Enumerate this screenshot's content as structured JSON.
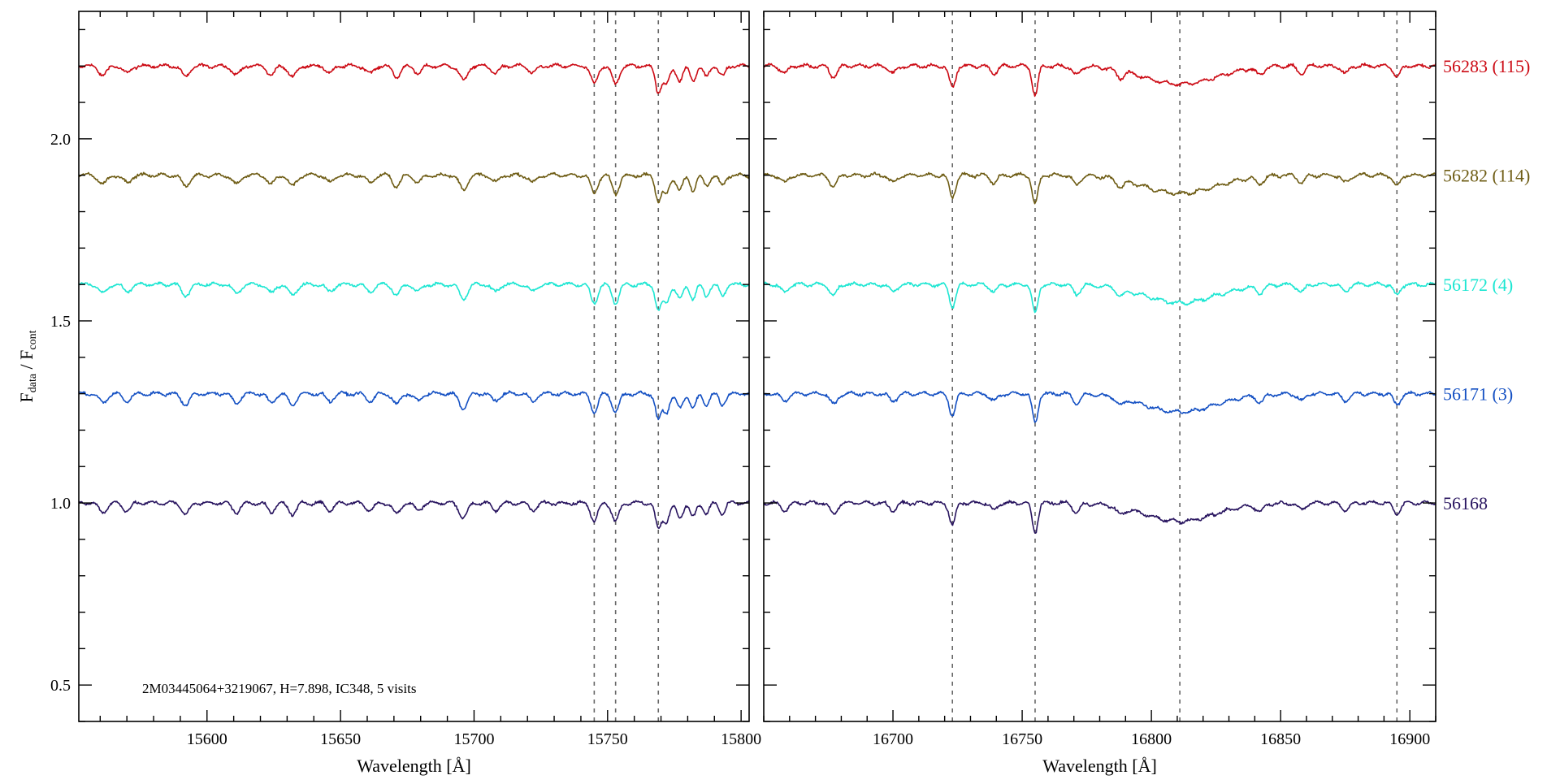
{
  "chart_data": {
    "type": "line",
    "ylabel": "F_data / F_cont",
    "annotation": "2M03445064+3219067,    H=7.898,    IC348,    5 visits",
    "ylim": [
      0.4,
      2.35
    ],
    "yticks": [
      0.5,
      1.0,
      1.5,
      2.0
    ],
    "ytick_labels": [
      "0.5",
      "1.0",
      "1.5",
      "2.0"
    ],
    "panels": [
      {
        "xlabel": "Wavelength [Å]",
        "xlim": [
          15552,
          15803
        ],
        "xticks": [
          15600,
          15650,
          15700,
          15750,
          15800
        ],
        "xtick_labels": [
          "15600",
          "15650",
          "15700",
          "15750",
          "15800"
        ],
        "reference_lines": [
          15745,
          15753,
          15769
        ]
      },
      {
        "xlabel": "Wavelength [Å]",
        "xlim": [
          16650,
          16910
        ],
        "xticks": [
          16700,
          16750,
          16800,
          16850,
          16900
        ],
        "xtick_labels": [
          "16700",
          "16750",
          "16800",
          "16850",
          "16900"
        ],
        "reference_lines": [
          16723,
          16755,
          16811,
          16895
        ]
      }
    ],
    "series": [
      {
        "name": "56283 (115)",
        "color": "#cc0a14",
        "offset": 1.2
      },
      {
        "name": "56282 (114)",
        "color": "#6e5c14",
        "offset": 0.9
      },
      {
        "name": "56172 (4)",
        "color": "#1ce6d2",
        "offset": 0.6
      },
      {
        "name": "56171 (3)",
        "color": "#1450c3",
        "offset": 0.3
      },
      {
        "name": "56168",
        "color": "#28145f",
        "offset": 0.0
      }
    ],
    "absorption_features": [
      [
        {
          "x": 15561,
          "depth": 0.025,
          "w": 1.5
        },
        {
          "x": 15570,
          "depth": 0.02,
          "w": 1.5
        },
        {
          "x": 15592,
          "depth": 0.03,
          "w": 1.5
        },
        {
          "x": 15611,
          "depth": 0.025,
          "w": 1.5
        },
        {
          "x": 15624,
          "depth": 0.025,
          "w": 1.4
        },
        {
          "x": 15632,
          "depth": 0.03,
          "w": 1.5
        },
        {
          "x": 15646,
          "depth": 0.02,
          "w": 1.4
        },
        {
          "x": 15661,
          "depth": 0.02,
          "w": 1.5
        },
        {
          "x": 15671,
          "depth": 0.03,
          "w": 1.4
        },
        {
          "x": 15679,
          "depth": 0.02,
          "w": 1.4
        },
        {
          "x": 15696,
          "depth": 0.04,
          "w": 1.5
        },
        {
          "x": 15708,
          "depth": 0.02,
          "w": 1.4
        },
        {
          "x": 15722,
          "depth": 0.02,
          "w": 1.4
        },
        {
          "x": 15745,
          "depth": 0.05,
          "w": 1.3
        },
        {
          "x": 15753,
          "depth": 0.05,
          "w": 1.3
        },
        {
          "x": 15769,
          "depth": 0.07,
          "w": 1.1
        },
        {
          "x": 15772,
          "depth": 0.05,
          "w": 1.2
        },
        {
          "x": 15777,
          "depth": 0.04,
          "w": 1.2
        },
        {
          "x": 15782,
          "depth": 0.04,
          "w": 1.1
        },
        {
          "x": 15787,
          "depth": 0.03,
          "w": 1.1
        },
        {
          "x": 15793,
          "depth": 0.03,
          "w": 1.1
        }
      ],
      [
        {
          "x": 16658,
          "depth": 0.02,
          "w": 1.5
        },
        {
          "x": 16677,
          "depth": 0.03,
          "w": 1.4
        },
        {
          "x": 16700,
          "depth": 0.02,
          "w": 1.5
        },
        {
          "x": 16723,
          "depth": 0.06,
          "w": 1.2
        },
        {
          "x": 16739,
          "depth": 0.02,
          "w": 1.4
        },
        {
          "x": 16755,
          "depth": 0.08,
          "w": 1.1
        },
        {
          "x": 16771,
          "depth": 0.025,
          "w": 1.4
        },
        {
          "x": 16788,
          "depth": 0.02,
          "w": 1.4
        },
        {
          "x": 16811,
          "depth": 0.05,
          "w": 14
        },
        {
          "x": 16842,
          "depth": 0.02,
          "w": 1.4
        },
        {
          "x": 16858,
          "depth": 0.02,
          "w": 1.4
        },
        {
          "x": 16875,
          "depth": 0.02,
          "w": 1.4
        },
        {
          "x": 16895,
          "depth": 0.03,
          "w": 1.3
        }
      ]
    ]
  }
}
